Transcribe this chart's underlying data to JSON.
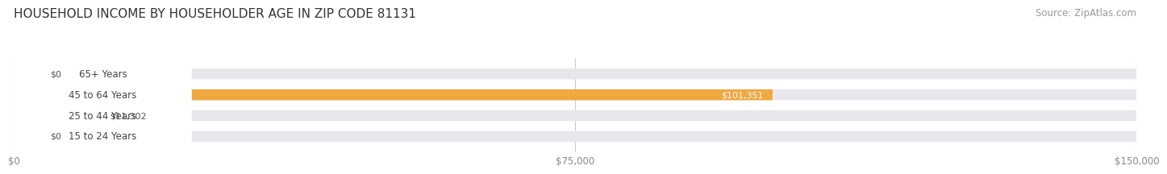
{
  "title": "HOUSEHOLD INCOME BY HOUSEHOLDER AGE IN ZIP CODE 81131",
  "source": "Source: ZipAtlas.com",
  "categories": [
    "15 to 24 Years",
    "25 to 44 Years",
    "45 to 64 Years",
    "65+ Years"
  ],
  "values": [
    0,
    11302,
    101351,
    0
  ],
  "bar_colors": [
    "#aaaadd",
    "#f080a0",
    "#f0a840",
    "#e8a0a0"
  ],
  "bar_bg_color": "#e8e8ec",
  "fig_bg_color": "#ffffff",
  "bar_label_colors": [
    "#555555",
    "#555555",
    "#ffffff",
    "#555555"
  ],
  "xlim": [
    0,
    150000
  ],
  "xticks": [
    0,
    75000,
    150000
  ],
  "xtick_labels": [
    "$0",
    "$75,000",
    "$150,000"
  ],
  "title_fontsize": 11,
  "source_fontsize": 8.5,
  "bar_height": 0.52,
  "value_labels": [
    "$0",
    "$11,302",
    "$101,351",
    "$0"
  ]
}
